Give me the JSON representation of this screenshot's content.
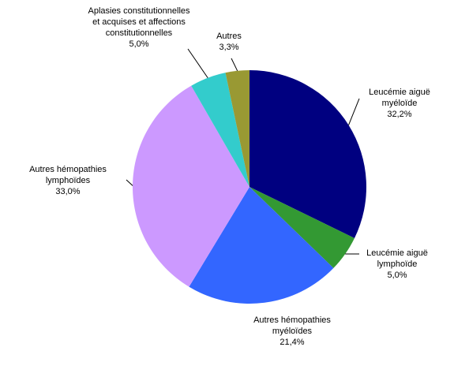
{
  "chart_data": {
    "type": "pie",
    "categories": [
      "Leucémie aiguë myéloïde",
      "Leucémie aiguë lymphoïde",
      "Autres hémopathies myéloïdes",
      "Autres hémopathies lymphoïdes",
      "Aplasies constitutionnelles et acquises et affections constitutionnelles",
      "Autres"
    ],
    "values": [
      32.2,
      5.0,
      21.4,
      33.0,
      5.0,
      3.3
    ],
    "value_labels": [
      "32,2%",
      "5,0%",
      "21,4%",
      "33,0%",
      "5,0%",
      "3,3%"
    ],
    "colors": [
      "#000080",
      "#339933",
      "#3366ff",
      "#cc99ff",
      "#33cccc",
      "#999933"
    ]
  }
}
